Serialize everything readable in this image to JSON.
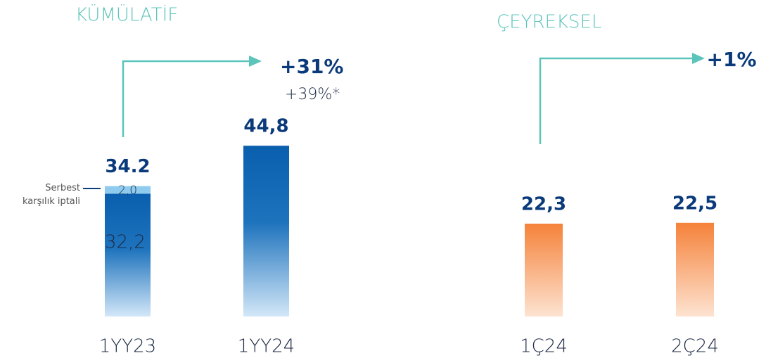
{
  "chart_data": [
    {
      "type": "bar",
      "stacked": true,
      "title": "KÜMÜLATİF",
      "categories": [
        "1YY23",
        "1YY24"
      ],
      "series": [
        {
          "color": "#0a5fae",
          "values": [
            32.2,
            44.8
          ],
          "value_labels": [
            "32,2",
            null
          ]
        },
        {
          "name": "Serbest karşılık iptali",
          "color": "#8ecbef",
          "values": [
            2.0,
            null
          ],
          "value_labels": [
            "2,0",
            null
          ]
        }
      ],
      "totals": [
        34.2,
        44.8
      ],
      "total_labels": [
        "34.2",
        "44,8"
      ],
      "annotation": {
        "label": "+31%",
        "note": "+39%*"
      }
    },
    {
      "type": "bar",
      "title": "ÇEYREKSEL",
      "categories": [
        "1Ç24",
        "2Ç24"
      ],
      "color": "#f5823a",
      "values": [
        22.3,
        22.5
      ],
      "value_labels": [
        "22,3",
        "22,5"
      ],
      "annotation": {
        "label": "+1%"
      }
    }
  ]
}
